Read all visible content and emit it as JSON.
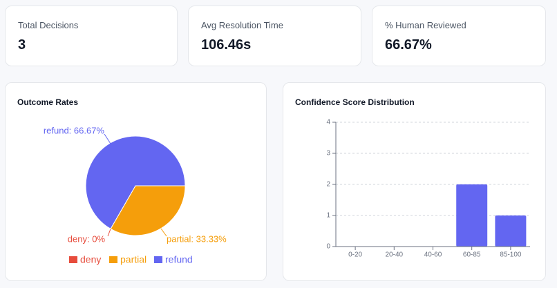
{
  "stats": [
    {
      "label": "Total Decisions",
      "value": "3"
    },
    {
      "label": "Avg Resolution Time",
      "value": "106.46s"
    },
    {
      "label": "% Human Reviewed",
      "value": "66.67%"
    }
  ],
  "outcome_panel": {
    "title": "Outcome Rates"
  },
  "confidence_panel": {
    "title": "Confidence Score Distribution"
  },
  "colors": {
    "deny": "#e74c3c",
    "partial": "#f59e0b",
    "refund": "#6366f1",
    "axis": "#6b7280",
    "grid": "#d1d5db"
  },
  "chart_data": [
    {
      "type": "pie",
      "title": "Outcome Rates",
      "slices": [
        {
          "name": "deny",
          "value": 0,
          "label": "deny: 0%"
        },
        {
          "name": "partial",
          "value": 33.33,
          "label": "partial: 33.33%"
        },
        {
          "name": "refund",
          "value": 66.67,
          "label": "refund: 66.67%"
        }
      ],
      "legend": [
        "deny",
        "partial",
        "refund"
      ],
      "legend_position": "bottom"
    },
    {
      "type": "bar",
      "title": "Confidence Score Distribution",
      "categories": [
        "0-20",
        "20-40",
        "40-60",
        "60-85",
        "85-100"
      ],
      "values": [
        0,
        0,
        0,
        2,
        1
      ],
      "ylim": [
        0,
        4
      ],
      "yticks": [
        "0",
        "1",
        "2",
        "3",
        "4"
      ],
      "grid": true
    }
  ]
}
